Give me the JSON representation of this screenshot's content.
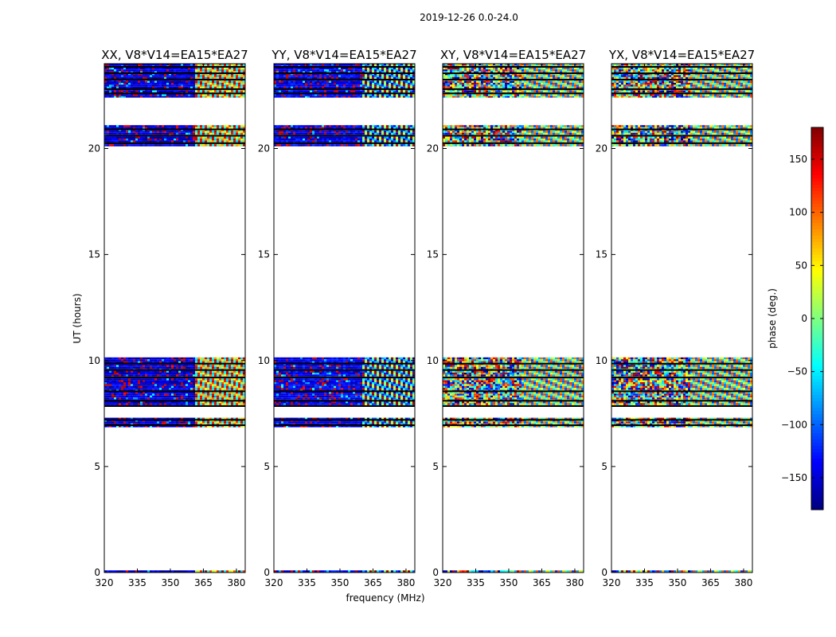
{
  "figure": {
    "title": "2019-12-26 0.0-24.0"
  },
  "chart_data": {
    "type": "heatmap",
    "title": "2019-12-26 0.0-24.0",
    "xlabel": "frequency (MHz)",
    "ylabel": "UT (hours)",
    "xlim": [
      320,
      384
    ],
    "ylim": [
      0,
      24
    ],
    "x_ticks": [
      "320",
      "335",
      "350",
      "365",
      "380"
    ],
    "y_ticks": [
      "0",
      "5",
      "10",
      "15",
      "20"
    ],
    "colormap": "jet",
    "colorbar": {
      "label": "phase (deg.)",
      "range": [
        -180,
        180
      ],
      "ticks": [
        "150",
        "100",
        "50",
        "0",
        "−50",
        "−100",
        "−150"
      ],
      "tick_values": [
        150,
        100,
        50,
        0,
        -50,
        -100,
        -150
      ]
    },
    "panels": [
      {
        "title": "XX, V8*V14=EA15*EA27",
        "dominant_phase": -150,
        "fringe_start_mhz": 361,
        "fringe_phase": 50
      },
      {
        "title": "YY, V8*V14=EA15*EA27",
        "dominant_phase": -140,
        "fringe_start_mhz": 360,
        "fringe_phase": -90
      },
      {
        "title": "XY, V8*V14=EA15*EA27",
        "dominant_phase": 0,
        "fringe_start_mhz": 355,
        "fringe_phase": 0
      },
      {
        "title": "YX, V8*V14=EA15*EA27",
        "dominant_phase": -20,
        "fringe_start_mhz": 355,
        "fringe_phase": 0
      }
    ],
    "data_blocks_ut_hours": [
      [
        0.0,
        0.1
      ],
      [
        6.85,
        7.3
      ],
      [
        7.85,
        10.15
      ],
      [
        20.1,
        21.1
      ],
      [
        22.4,
        24.0
      ]
    ],
    "flagged_rows_ut_hours": [
      6.95,
      7.2,
      7.85,
      8.1,
      8.55,
      9.2,
      9.55,
      9.85,
      20.25,
      20.6,
      20.9,
      22.6,
      22.8,
      23.25,
      23.55,
      23.85
    ],
    "colors": {
      "axes": "#000000",
      "background": "#ffffff"
    }
  }
}
